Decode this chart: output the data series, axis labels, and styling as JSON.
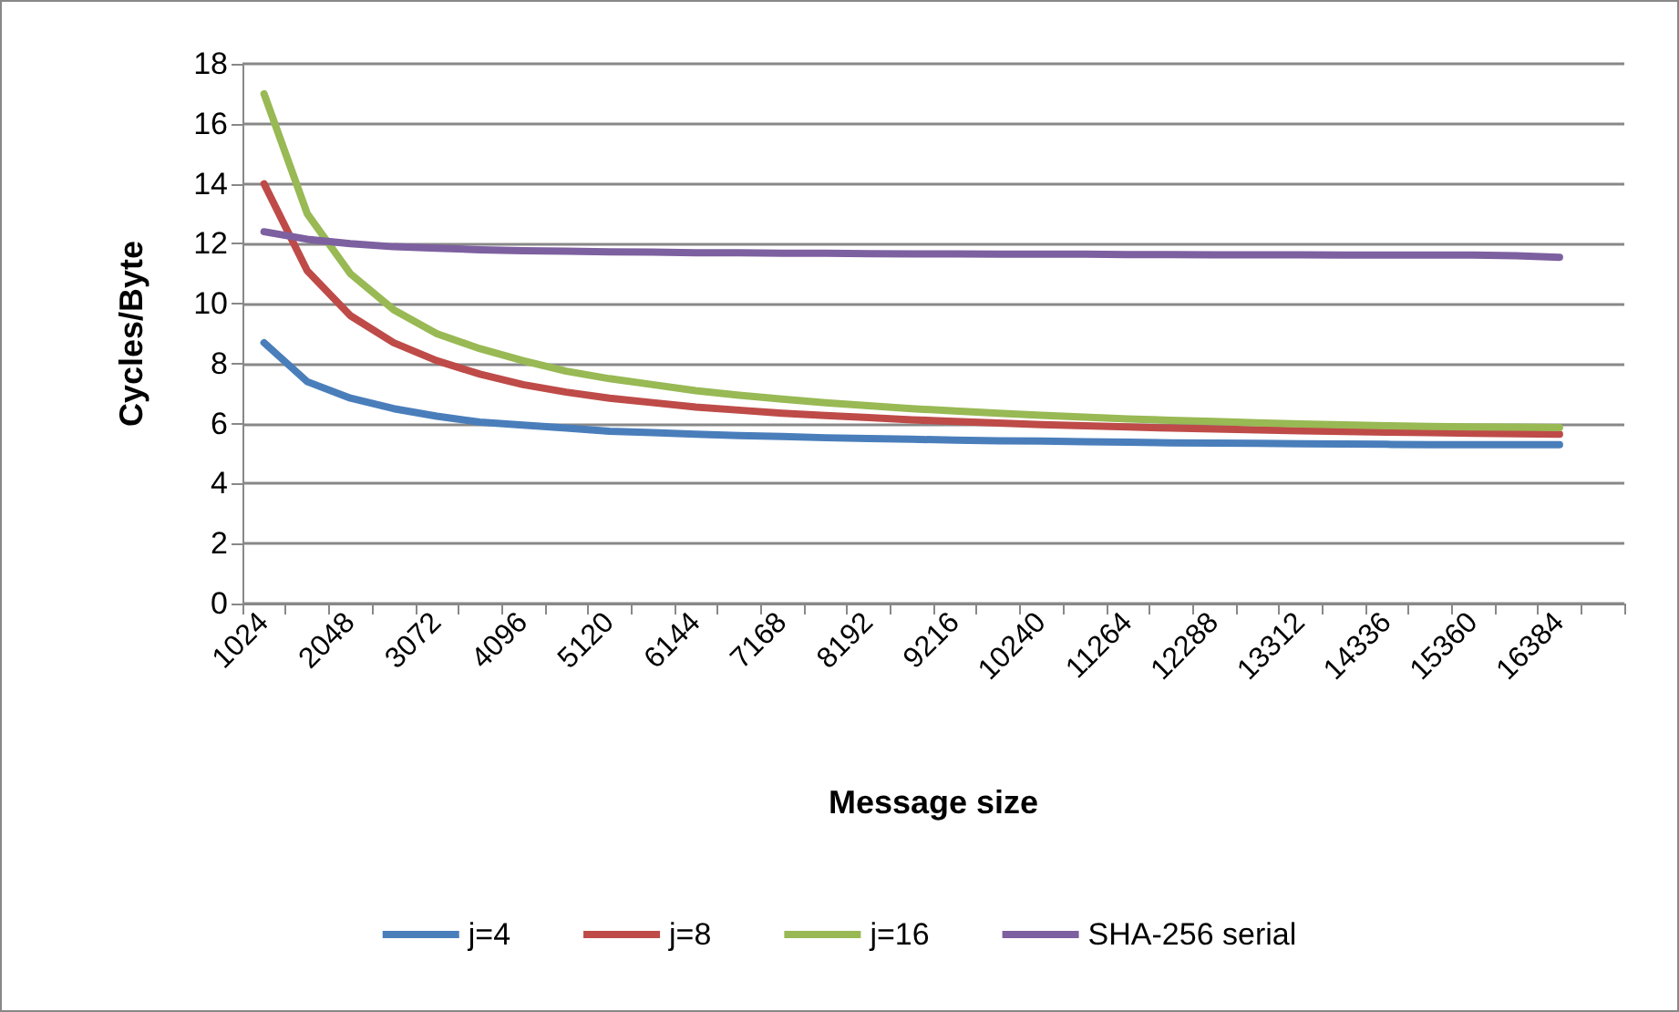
{
  "chart_data": {
    "type": "line",
    "xlabel": "Message size",
    "ylabel": "Cycles/Byte",
    "categories": [
      "1024",
      null,
      "2048",
      null,
      "3072",
      null,
      "4096",
      null,
      "5120",
      null,
      "6144",
      null,
      "7168",
      null,
      "8192",
      null,
      "9216",
      null,
      "10240",
      null,
      "11264",
      null,
      "12288",
      null,
      "13312",
      null,
      "14336",
      null,
      "15360",
      null,
      "16384",
      null
    ],
    "series": [
      {
        "name": "j=4",
        "color": "#4a7ebb",
        "values": [
          8.7,
          7.4,
          6.85,
          6.5,
          6.25,
          6.05,
          5.95,
          5.85,
          5.75,
          5.7,
          5.65,
          5.6,
          5.57,
          5.53,
          5.5,
          5.48,
          5.45,
          5.43,
          5.42,
          5.4,
          5.38,
          5.36,
          5.35,
          5.34,
          5.33,
          5.32,
          5.31,
          5.3,
          5.3,
          5.3,
          5.3,
          null
        ]
      },
      {
        "name": "j=8",
        "color": "#be4b48",
        "values": [
          14,
          11.1,
          9.6,
          8.7,
          8.1,
          7.65,
          7.3,
          7.05,
          6.85,
          6.7,
          6.55,
          6.45,
          6.35,
          6.27,
          6.2,
          6.13,
          6.07,
          6.02,
          5.97,
          5.93,
          5.89,
          5.85,
          5.82,
          5.79,
          5.76,
          5.74,
          5.72,
          5.7,
          5.68,
          5.66,
          5.65,
          null
        ]
      },
      {
        "name": "j=16",
        "color": "#98b954",
        "values": [
          17,
          13,
          11,
          9.8,
          9,
          8.5,
          8.1,
          7.75,
          7.5,
          7.3,
          7.1,
          6.95,
          6.82,
          6.7,
          6.6,
          6.5,
          6.42,
          6.35,
          6.28,
          6.22,
          6.16,
          6.11,
          6.07,
          6.03,
          5.99,
          5.96,
          5.93,
          5.91,
          5.89,
          5.88,
          5.87,
          null
        ]
      },
      {
        "name": "SHA-256 serial",
        "color": "#7d60a0",
        "values": [
          12.4,
          12.15,
          12.0,
          11.9,
          11.85,
          11.8,
          11.77,
          11.75,
          11.73,
          11.72,
          11.7,
          11.7,
          11.68,
          11.68,
          11.67,
          11.66,
          11.66,
          11.65,
          11.65,
          11.65,
          11.64,
          11.64,
          11.63,
          11.63,
          11.63,
          11.62,
          11.62,
          11.62,
          11.62,
          11.6,
          11.55,
          null
        ]
      }
    ],
    "ylim": [
      0,
      18
    ],
    "yticks": [
      0,
      2,
      4,
      6,
      8,
      10,
      12,
      14,
      16,
      18
    ],
    "grid": "y",
    "legend": "bottom",
    "marker": "none",
    "line_style": "solid"
  }
}
